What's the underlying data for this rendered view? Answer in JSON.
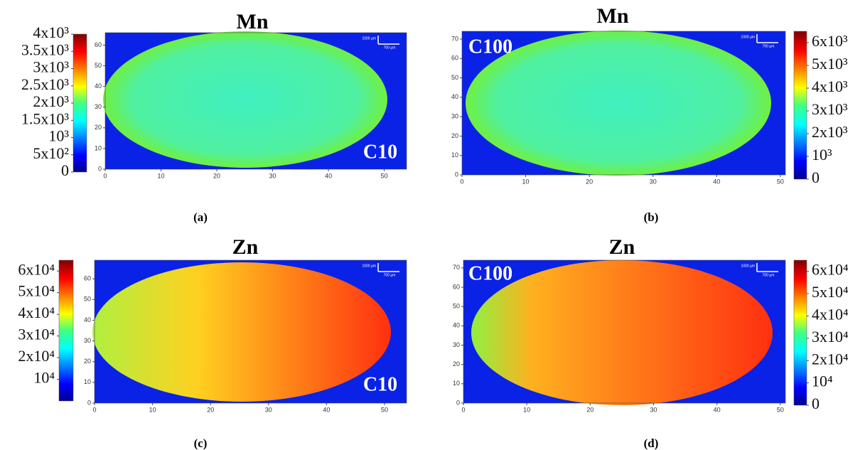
{
  "chart_data": [
    {
      "type": "heatmap",
      "title": "Mn",
      "annotation": "C10",
      "caption": "(a)",
      "colormap": "jet",
      "xlim": [
        0,
        54
      ],
      "xticks": [
        0,
        10,
        20,
        30,
        40,
        50
      ],
      "ylim": [
        0,
        66
      ],
      "yticks": [
        0,
        10,
        20,
        30,
        40,
        50,
        60
      ],
      "scale_bar": [
        "1000 µm",
        "700 µm"
      ],
      "colorbar": {
        "lim": [
          0,
          4000
        ],
        "ticks": [
          0,
          {
            "value": 500,
            "label": "5x10²"
          },
          {
            "value": 1000,
            "label": "10³"
          },
          {
            "value": 1500,
            "label": "1.5x10³"
          },
          {
            "value": 2000,
            "label": "2x10³"
          },
          {
            "value": 2500,
            "label": "2.5x10³"
          },
          {
            "value": 3000,
            "label": "3x10³"
          },
          {
            "value": 3500,
            "label": "3.5x10³"
          },
          {
            "value": 4000,
            "label": "4x10³"
          }
        ]
      }
    },
    {
      "type": "heatmap",
      "title": "Mn",
      "annotation": "C100",
      "caption": "(b)",
      "colormap": "jet",
      "xlim": [
        0,
        50.8
      ],
      "xticks": [
        0,
        10,
        20,
        30,
        40,
        50
      ],
      "ylim": [
        0,
        74
      ],
      "yticks": [
        0,
        10,
        20,
        30,
        40,
        50,
        60,
        70
      ],
      "scale_bar": [
        "1000 µm",
        "700 µm"
      ],
      "colorbar": {
        "lim": [
          0,
          6500
        ],
        "ticks": [
          0,
          {
            "value": 1000,
            "label": "10³"
          },
          {
            "value": 2000,
            "label": "2x10³"
          },
          {
            "value": 3000,
            "label": "3x10³"
          },
          {
            "value": 4000,
            "label": "4x10³"
          },
          {
            "value": 5000,
            "label": "5x10³"
          },
          {
            "value": 6000,
            "label": "6x10³"
          }
        ]
      }
    },
    {
      "type": "heatmap",
      "title": "Zn",
      "annotation": "C10",
      "caption": "(c)",
      "colormap": "jet",
      "xlim": [
        0,
        53.8
      ],
      "xticks": [
        0,
        10,
        20,
        30,
        40,
        50
      ],
      "ylim": [
        0,
        69
      ],
      "yticks": [
        0,
        10,
        20,
        30,
        40,
        50,
        60
      ],
      "scale_bar": [
        "1000 µm",
        "700 µm"
      ],
      "colorbar": {
        "lim": [
          0,
          65000
        ],
        "ticks": [
          {
            "value": 10000,
            "label": "10⁴"
          },
          {
            "value": 20000,
            "label": "2x10⁴"
          },
          {
            "value": 30000,
            "label": "3x10⁴"
          },
          {
            "value": 40000,
            "label": "4x10⁴"
          },
          {
            "value": 50000,
            "label": "5x10⁴"
          },
          {
            "value": 60000,
            "label": "6x10⁴"
          }
        ]
      }
    },
    {
      "type": "heatmap",
      "title": "Zn",
      "annotation": "C100",
      "caption": "(d)",
      "colormap": "jet",
      "xlim": [
        0,
        50.8
      ],
      "xticks": [
        0,
        10,
        20,
        30,
        40,
        50
      ],
      "ylim": [
        0,
        74
      ],
      "yticks": [
        0,
        10,
        20,
        30,
        40,
        50,
        60,
        70
      ],
      "scale_bar": [
        "1000 µm",
        "700 µm"
      ],
      "colorbar": {
        "lim": [
          0,
          65000
        ],
        "ticks": [
          0,
          {
            "value": 10000,
            "label": "10⁴"
          },
          {
            "value": 20000,
            "label": "2x10⁴"
          },
          {
            "value": 30000,
            "label": "3x10⁴"
          },
          {
            "value": 40000,
            "label": "4x10⁴"
          },
          {
            "value": 50000,
            "label": "5x10⁴"
          },
          {
            "value": 60000,
            "label": "6x10⁴"
          }
        ]
      }
    }
  ]
}
